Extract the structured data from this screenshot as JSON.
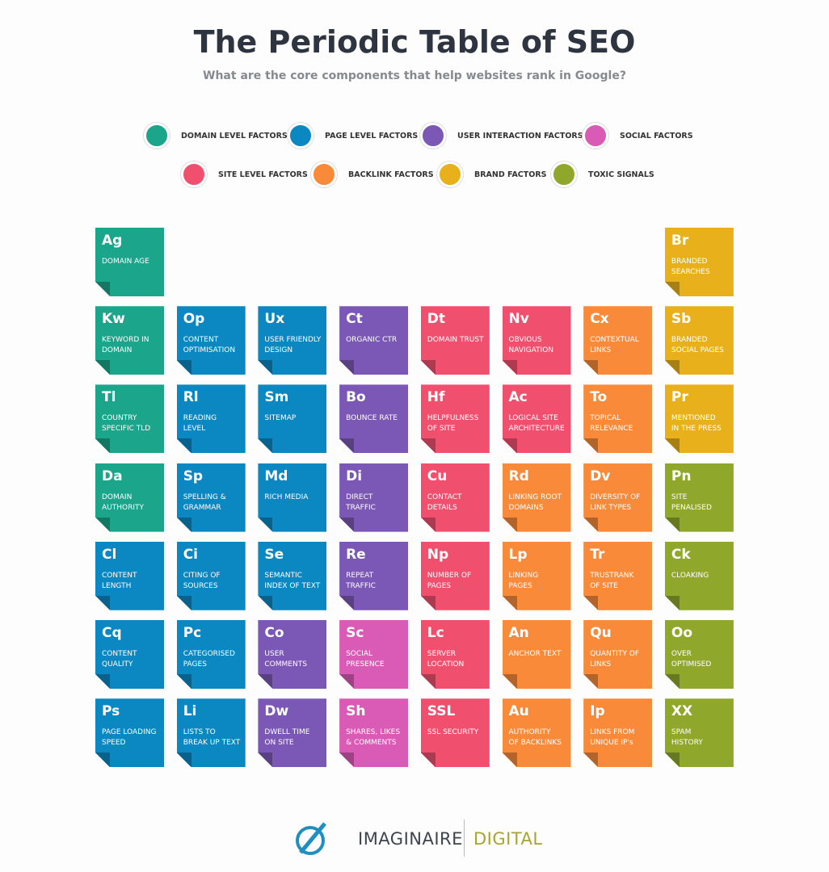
{
  "header": {
    "title": "The Periodic Table of SEO",
    "subtitle": "What are the core components that help websites rank in Google?"
  },
  "legend": [
    {
      "label": "DOMAIN LEVEL FACTORS",
      "color": "#1ba58b"
    },
    {
      "label": "PAGE LEVEL FACTORS",
      "color": "#0b87c1"
    },
    {
      "label": "USER INTERACTION FACTORS",
      "color": "#7b58b5"
    },
    {
      "label": "SOCIAL FACTORS",
      "color": "#d95bb6"
    },
    {
      "label": "SITE LEVEL FACTORS",
      "color": "#f0506e"
    },
    {
      "label": "BACKLINK FACTORS",
      "color": "#f88a3a"
    },
    {
      "label": "BRAND FACTORS",
      "color": "#e8b01a"
    },
    {
      "label": "TOXIC SIGNALS",
      "color": "#8fa82c"
    }
  ],
  "tiles": {
    "rows": [
      [
        {
          "symbol": "Ag",
          "name": [
            "DOMAIN AGE"
          ],
          "color": "#1ba58b"
        },
        null,
        null,
        null,
        null,
        null,
        null,
        {
          "symbol": "Br",
          "name": [
            "BRANDED",
            "SEARCHES"
          ],
          "color": "#e8b01a"
        }
      ],
      [
        {
          "symbol": "Kw",
          "name": [
            "KEYWORD IN",
            "DOMAIN"
          ],
          "color": "#1ba58b"
        },
        {
          "symbol": "Op",
          "name": [
            "CONTENT",
            "OPTIMISATION"
          ],
          "color": "#0b87c1"
        },
        {
          "symbol": "Ux",
          "name": [
            "USER FRIENDLY",
            "DESIGN"
          ],
          "color": "#0b87c1"
        },
        {
          "symbol": "Ct",
          "name": [
            "ORGANIC CTR"
          ],
          "color": "#7b58b5"
        },
        {
          "symbol": "Dt",
          "name": [
            "DOMAIN TRUST"
          ],
          "color": "#f0506e"
        },
        {
          "symbol": "Nv",
          "name": [
            "OBVIOUS",
            "NAVIGATION"
          ],
          "color": "#f0506e"
        },
        {
          "symbol": "Cx",
          "name": [
            "CONTEXTUAL",
            "LINKS"
          ],
          "color": "#f88a3a"
        },
        {
          "symbol": "Sb",
          "name": [
            "BRANDED",
            "SOCIAL PAGES"
          ],
          "color": "#e8b01a"
        }
      ],
      [
        {
          "symbol": "Tl",
          "name": [
            "COUNTRY",
            "SPECIFIC TLD"
          ],
          "color": "#1ba58b"
        },
        {
          "symbol": "Rl",
          "name": [
            "READING",
            "LEVEL"
          ],
          "color": "#0b87c1"
        },
        {
          "symbol": "Sm",
          "name": [
            "SITEMAP"
          ],
          "color": "#0b87c1"
        },
        {
          "symbol": "Bo",
          "name": [
            "BOUNCE RATE"
          ],
          "color": "#7b58b5"
        },
        {
          "symbol": "Hf",
          "name": [
            "HELPFULNESS",
            "OF SITE"
          ],
          "color": "#f0506e"
        },
        {
          "symbol": "Ac",
          "name": [
            "LOGICAL SITE",
            "ARCHITECTURE"
          ],
          "color": "#f0506e"
        },
        {
          "symbol": "To",
          "name": [
            "TOPICAL",
            "RELEVANCE"
          ],
          "color": "#f88a3a"
        },
        {
          "symbol": "Pr",
          "name": [
            "MENTIONED",
            "IN THE PRESS"
          ],
          "color": "#e8b01a"
        }
      ],
      [
        {
          "symbol": "Da",
          "name": [
            "DOMAIN",
            "AUTHORITY"
          ],
          "color": "#1ba58b"
        },
        {
          "symbol": "Sp",
          "name": [
            "SPELLING &",
            "GRAMMAR"
          ],
          "color": "#0b87c1"
        },
        {
          "symbol": "Md",
          "name": [
            "RICH MEDIA"
          ],
          "color": "#0b87c1"
        },
        {
          "symbol": "Di",
          "name": [
            "DIRECT",
            "TRAFFIC"
          ],
          "color": "#7b58b5"
        },
        {
          "symbol": "Cu",
          "name": [
            "CONTACT",
            "DETAILS"
          ],
          "color": "#f0506e"
        },
        {
          "symbol": "Rd",
          "name": [
            "LINKING ROOT",
            "DOMAINS"
          ],
          "color": "#f88a3a"
        },
        {
          "symbol": "Dv",
          "name": [
            "DIVERSITY OF",
            "LINK TYPES"
          ],
          "color": "#f88a3a"
        },
        {
          "symbol": "Pn",
          "name": [
            "SITE",
            "PENALISED"
          ],
          "color": "#8fa82c"
        }
      ],
      [
        {
          "symbol": "Cl",
          "name": [
            "CONTENT",
            "LENGTH"
          ],
          "color": "#0b87c1"
        },
        {
          "symbol": "Ci",
          "name": [
            "CITING OF",
            "SOURCES"
          ],
          "color": "#0b87c1"
        },
        {
          "symbol": "Se",
          "name": [
            "SEMANTIC",
            "INDEX OF TEXT"
          ],
          "color": "#0b87c1"
        },
        {
          "symbol": "Re",
          "name": [
            "REPEAT",
            "TRAFFIC"
          ],
          "color": "#7b58b5"
        },
        {
          "symbol": "Np",
          "name": [
            "NUMBER OF",
            "PAGES"
          ],
          "color": "#f0506e"
        },
        {
          "symbol": "Lp",
          "name": [
            "LINKING",
            "PAGES"
          ],
          "color": "#f88a3a"
        },
        {
          "symbol": "Tr",
          "name": [
            "TRUSTRANK",
            "OF SITE"
          ],
          "color": "#f88a3a"
        },
        {
          "symbol": "Ck",
          "name": [
            "CLOAKING"
          ],
          "color": "#8fa82c"
        }
      ],
      [
        {
          "symbol": "Cq",
          "name": [
            "CONTENT",
            "QUALITY"
          ],
          "color": "#0b87c1"
        },
        {
          "symbol": "Pc",
          "name": [
            "CATEGORISED",
            "PAGES"
          ],
          "color": "#0b87c1"
        },
        {
          "symbol": "Co",
          "name": [
            "USER",
            "COMMENTS"
          ],
          "color": "#7b58b5"
        },
        {
          "symbol": "Sc",
          "name": [
            "SOCIAL",
            "PRESENCE"
          ],
          "color": "#d95bb6"
        },
        {
          "symbol": "Lc",
          "name": [
            "SERVER",
            "LOCATION"
          ],
          "color": "#f0506e"
        },
        {
          "symbol": "An",
          "name": [
            "ANCHOR TEXT"
          ],
          "color": "#f88a3a"
        },
        {
          "symbol": "Qu",
          "name": [
            "QUANTITY OF",
            "LINKS"
          ],
          "color": "#f88a3a"
        },
        {
          "symbol": "Oo",
          "name": [
            "OVER",
            "OPTIMISED"
          ],
          "color": "#8fa82c"
        }
      ],
      [
        {
          "symbol": "Ps",
          "name": [
            "PAGE LOADING",
            "SPEED"
          ],
          "color": "#0b87c1"
        },
        {
          "symbol": "Li",
          "name": [
            "LISTS TO",
            "BREAK UP TEXT"
          ],
          "color": "#0b87c1"
        },
        {
          "symbol": "Dw",
          "name": [
            "DWELL TIME",
            "ON SITE"
          ],
          "color": "#7b58b5"
        },
        {
          "symbol": "Sh",
          "name": [
            "SHARES, LIKES",
            "& COMMENTS"
          ],
          "color": "#d95bb6"
        },
        {
          "symbol": "SSL",
          "name": [
            "SSL SECURITY"
          ],
          "color": "#f0506e"
        },
        {
          "symbol": "Au",
          "name": [
            "AUTHORITY",
            "OF BACKLINKS"
          ],
          "color": "#f88a3a"
        },
        {
          "symbol": "Ip",
          "name": [
            "LINKS FROM",
            "UNIQUE IP's"
          ],
          "color": "#f88a3a"
        },
        {
          "symbol": "XX",
          "name": [
            "SPAM",
            "HISTORY"
          ],
          "color": "#8fa82c"
        }
      ]
    ]
  },
  "footer": {
    "brand": "IMAGINAIRE",
    "brand_suffix": "DIGITAL"
  }
}
